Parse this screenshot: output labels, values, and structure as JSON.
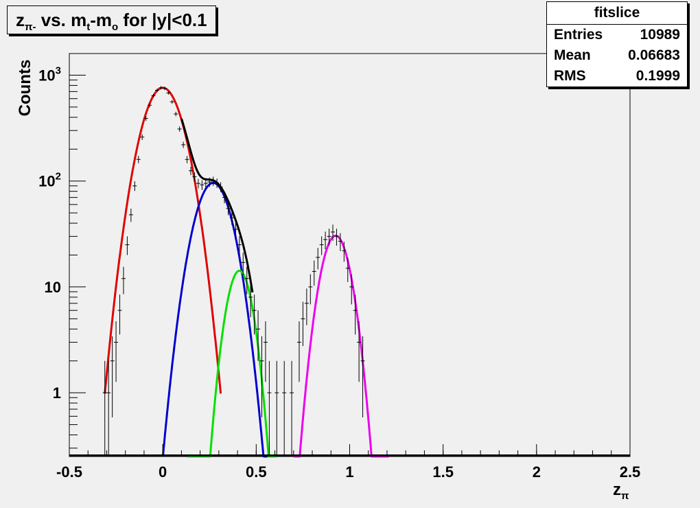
{
  "title": {
    "z": "z",
    "z_sub": "π-",
    "vs": " vs. m",
    "m_sub1": "t",
    "dash": "-m",
    "m_sub2": "o",
    "rest": " for |y|<0.1"
  },
  "stats": {
    "name": "fitslice",
    "rows": [
      {
        "label": "Entries",
        "value": "10989"
      },
      {
        "label": "Mean",
        "value": "0.06683"
      },
      {
        "label": "RMS",
        "value": "0.1999"
      }
    ]
  },
  "chart_data": {
    "type": "scatter",
    "ylabel": "Counts",
    "xlabel_main": "z",
    "xlabel_sub": "π",
    "xlim": [
      -0.5,
      2.5
    ],
    "ylim": [
      0.25,
      1600
    ],
    "y_scale": "log",
    "x_ticks": [
      {
        "v": -0.5,
        "label": "-0.5"
      },
      {
        "v": 0,
        "label": "0"
      },
      {
        "v": 0.5,
        "label": "0.5"
      },
      {
        "v": 1,
        "label": "1"
      },
      {
        "v": 1.5,
        "label": "1.5"
      },
      {
        "v": 2,
        "label": "2"
      },
      {
        "v": 2.5,
        "label": "2.5"
      }
    ],
    "y_ticks": [
      {
        "v": 1,
        "base": "1",
        "exp": ""
      },
      {
        "v": 10,
        "base": "10",
        "exp": ""
      },
      {
        "v": 100,
        "base": "10",
        "exp": "2"
      },
      {
        "v": 1000,
        "base": "10",
        "exp": "3"
      }
    ],
    "grid": false,
    "data_points": [
      {
        "x": -0.31,
        "y": 1
      },
      {
        "x": -0.29,
        "y": 1
      },
      {
        "x": -0.27,
        "y": 2
      },
      {
        "x": -0.25,
        "y": 3
      },
      {
        "x": -0.23,
        "y": 6
      },
      {
        "x": -0.21,
        "y": 12
      },
      {
        "x": -0.19,
        "y": 25
      },
      {
        "x": -0.17,
        "y": 48
      },
      {
        "x": -0.15,
        "y": 90
      },
      {
        "x": -0.13,
        "y": 160
      },
      {
        "x": -0.11,
        "y": 260
      },
      {
        "x": -0.09,
        "y": 390
      },
      {
        "x": -0.07,
        "y": 520
      },
      {
        "x": -0.05,
        "y": 640
      },
      {
        "x": -0.03,
        "y": 720
      },
      {
        "x": -0.01,
        "y": 760
      },
      {
        "x": 0.01,
        "y": 750
      },
      {
        "x": 0.03,
        "y": 680
      },
      {
        "x": 0.05,
        "y": 560
      },
      {
        "x": 0.07,
        "y": 430
      },
      {
        "x": 0.09,
        "y": 310
      },
      {
        "x": 0.11,
        "y": 220
      },
      {
        "x": 0.13,
        "y": 160
      },
      {
        "x": 0.15,
        "y": 125
      },
      {
        "x": 0.17,
        "y": 110
      },
      {
        "x": 0.19,
        "y": 95
      },
      {
        "x": 0.21,
        "y": 92
      },
      {
        "x": 0.23,
        "y": 95
      },
      {
        "x": 0.25,
        "y": 98
      },
      {
        "x": 0.27,
        "y": 100
      },
      {
        "x": 0.29,
        "y": 96
      },
      {
        "x": 0.31,
        "y": 88
      },
      {
        "x": 0.33,
        "y": 70
      },
      {
        "x": 0.35,
        "y": 55
      },
      {
        "x": 0.37,
        "y": 45
      },
      {
        "x": 0.39,
        "y": 35
      },
      {
        "x": 0.41,
        "y": 25
      },
      {
        "x": 0.43,
        "y": 17
      },
      {
        "x": 0.45,
        "y": 12
      },
      {
        "x": 0.47,
        "y": 8
      },
      {
        "x": 0.49,
        "y": 6
      },
      {
        "x": 0.51,
        "y": 4
      },
      {
        "x": 0.53,
        "y": 2
      },
      {
        "x": 0.55,
        "y": 3
      },
      {
        "x": 0.57,
        "y": 1
      },
      {
        "x": 0.61,
        "y": 1
      },
      {
        "x": 0.65,
        "y": 1
      },
      {
        "x": 0.69,
        "y": 1
      },
      {
        "x": 0.73,
        "y": 3
      },
      {
        "x": 0.75,
        "y": 5
      },
      {
        "x": 0.77,
        "y": 7
      },
      {
        "x": 0.79,
        "y": 10
      },
      {
        "x": 0.81,
        "y": 14
      },
      {
        "x": 0.83,
        "y": 19
      },
      {
        "x": 0.85,
        "y": 25
      },
      {
        "x": 0.87,
        "y": 28
      },
      {
        "x": 0.89,
        "y": 30
      },
      {
        "x": 0.91,
        "y": 33
      },
      {
        "x": 0.93,
        "y": 30
      },
      {
        "x": 0.95,
        "y": 27
      },
      {
        "x": 0.97,
        "y": 22
      },
      {
        "x": 0.99,
        "y": 15
      },
      {
        "x": 1.01,
        "y": 10
      },
      {
        "x": 1.03,
        "y": 6
      },
      {
        "x": 1.05,
        "y": 3
      },
      {
        "x": 1.07,
        "y": 2
      }
    ],
    "fits": [
      {
        "color": "#e00000",
        "mean": 0.0,
        "sigma": 0.085,
        "amp": 760,
        "xmin": -0.31,
        "xmax": 0.31
      },
      {
        "color": "#0000d0",
        "mean": 0.27,
        "sigma": 0.078,
        "amp": 96,
        "xmin": 0.0,
        "xmax": 0.56
      },
      {
        "color": "#00e000",
        "mean": 0.41,
        "sigma": 0.055,
        "amp": 14.2,
        "xmin": 0.13,
        "xmax": 0.61
      },
      {
        "color": "#ee00ee",
        "mean": 0.925,
        "sigma": 0.062,
        "amp": 30.5,
        "xmin": 0.7,
        "xmax": 1.21
      },
      {
        "color": "#000000",
        "sum_of": [
          0,
          1,
          2
        ],
        "xmin": 0.1,
        "xmax": 0.48
      }
    ]
  }
}
